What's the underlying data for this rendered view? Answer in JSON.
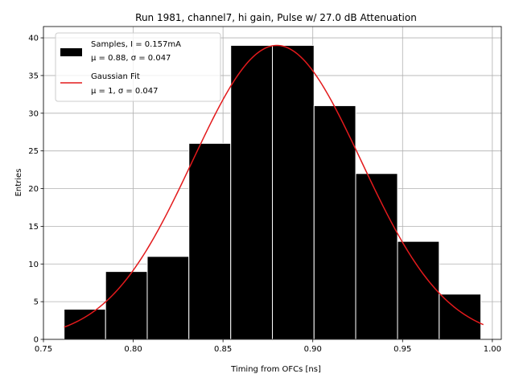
{
  "chart_data": {
    "type": "bar",
    "title": "Run 1981, channel7, hi gain, Pulse w/ 27.0 dB Attenuation",
    "xlabel": "Timing from OFCs [ns]",
    "ylabel": "Entries",
    "xlim": [
      0.75,
      1.005
    ],
    "ylim": [
      0,
      41.5
    ],
    "xticks": [
      0.75,
      0.8,
      0.85,
      0.9,
      0.95,
      1.0
    ],
    "xtick_labels": [
      "0.75",
      "0.80",
      "0.85",
      "0.90",
      "0.95",
      "1.00"
    ],
    "yticks": [
      0,
      5,
      10,
      15,
      20,
      25,
      30,
      35,
      40
    ],
    "grid": true,
    "legend_position": "top-left",
    "bins": [
      {
        "x0": 0.7615,
        "x1": 0.7846,
        "count": 4
      },
      {
        "x0": 0.7846,
        "x1": 0.8078,
        "count": 9
      },
      {
        "x0": 0.8078,
        "x1": 0.831,
        "count": 11
      },
      {
        "x0": 0.831,
        "x1": 0.8543,
        "count": 26
      },
      {
        "x0": 0.8543,
        "x1": 0.8775,
        "count": 39
      },
      {
        "x0": 0.8775,
        "x1": 0.9007,
        "count": 39
      },
      {
        "x0": 0.9007,
        "x1": 0.9239,
        "count": 31
      },
      {
        "x0": 0.9239,
        "x1": 0.9472,
        "count": 22
      },
      {
        "x0": 0.9472,
        "x1": 0.9704,
        "count": 13
      },
      {
        "x0": 0.9704,
        "x1": 0.9936,
        "count": 6
      }
    ],
    "fit": {
      "mu": 0.88,
      "sigma": 0.047,
      "amplitude": 39,
      "x_range": [
        0.7615,
        0.995
      ]
    },
    "series": [
      {
        "name_line1": "Samples, I = 0.157mA",
        "name_line2": "μ = 0.88, σ = 0.047",
        "color": "#000000",
        "edge_color": "#ffffff"
      },
      {
        "name_line1": "Gaussian Fit",
        "name_line2": "μ = 1, σ = 0.047",
        "color": "#e31a1c"
      }
    ]
  }
}
